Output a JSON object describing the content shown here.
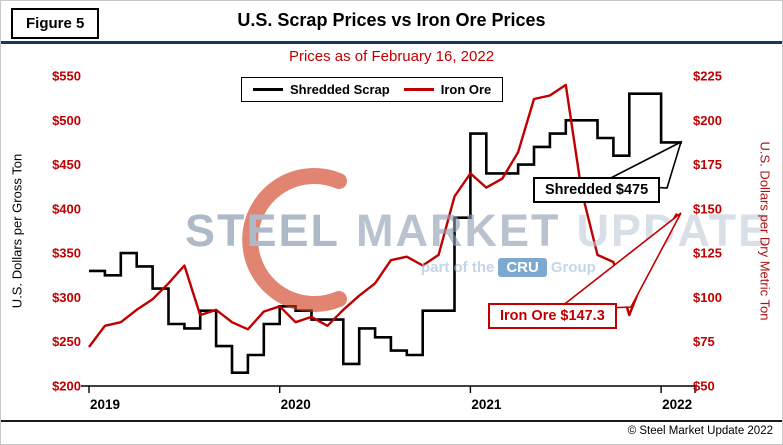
{
  "figure_label": "Figure 5",
  "title": "U.S. Scrap Prices vs Iron Ore Prices",
  "subtitle": "Prices as of February 16, 2022",
  "footer": {
    "copyright": "© Steel Market Update 2022"
  },
  "watermark": {
    "words": [
      "STEEL",
      "MARKET",
      "UPDATE"
    ],
    "tagline_pre": "part of the",
    "tagline_brand": "CRU",
    "tagline_post": "Group"
  },
  "annotations": {
    "shredded": {
      "label": "Shredded $475"
    },
    "iron_ore": {
      "label": "Iron Ore $147.3"
    }
  },
  "colors": {
    "scrap_line": "#000000",
    "iron_ore_line": "#c00000",
    "subtitle_red": "#c00000",
    "header_rule_navy": "#17375e",
    "cru_box_blue": "#2e75b6"
  },
  "chart_data": {
    "type": "line",
    "title": "U.S. Scrap Prices vs Iron Ore Prices",
    "subtitle": "Prices as of February 16, 2022",
    "grid": false,
    "legend_position": "top-center",
    "x_axis": {
      "tick_labels": [
        "2019",
        "2020",
        "2021",
        "2022"
      ]
    },
    "left_axis": {
      "label": "U.S. Dollars per Gross Ton",
      "ylim": [
        200,
        550
      ],
      "tick_step": 50,
      "tick_labels": [
        "$550",
        "$500",
        "$450",
        "$400",
        "$350",
        "$300",
        "$250",
        "$200"
      ]
    },
    "right_axis": {
      "label": "U.S. Dollars per Dry Metric Ton",
      "ylim": [
        50,
        225
      ],
      "tick_step": 25,
      "tick_labels": [
        "$225",
        "$200",
        "$175",
        "$150",
        "$125",
        "$100",
        "$75",
        "$50"
      ]
    },
    "months": [
      "2019-01",
      "2019-02",
      "2019-03",
      "2019-04",
      "2019-05",
      "2019-06",
      "2019-07",
      "2019-08",
      "2019-09",
      "2019-10",
      "2019-11",
      "2019-12",
      "2020-01",
      "2020-02",
      "2020-03",
      "2020-04",
      "2020-05",
      "2020-06",
      "2020-07",
      "2020-08",
      "2020-09",
      "2020-10",
      "2020-11",
      "2020-12",
      "2021-01",
      "2021-02",
      "2021-03",
      "2021-04",
      "2021-05",
      "2021-06",
      "2021-07",
      "2021-08",
      "2021-09",
      "2021-10",
      "2021-11",
      "2021-12",
      "2022-01",
      "2022-02"
    ],
    "series": [
      {
        "name": "Shredded Scrap",
        "axis": "left",
        "unit": "USD per gross ton",
        "color": "#000000",
        "line_style": "step",
        "latest": 475,
        "values": [
          330,
          325,
          350,
          335,
          310,
          270,
          265,
          285,
          245,
          215,
          235,
          270,
          290,
          285,
          275,
          275,
          225,
          265,
          255,
          240,
          235,
          285,
          285,
          390,
          485,
          440,
          440,
          450,
          470,
          485,
          500,
          500,
          480,
          460,
          530,
          530,
          475,
          475
        ]
      },
      {
        "name": "Iron Ore",
        "axis": "right",
        "unit": "USD per dry metric ton",
        "color": "#c00000",
        "line_style": "solid",
        "latest": 147.3,
        "values": [
          72,
          84,
          86,
          93,
          99,
          108,
          118,
          90,
          93,
          86,
          82,
          92,
          95,
          86,
          89,
          84,
          93,
          101,
          108,
          121,
          123,
          118,
          124,
          157,
          170,
          162,
          167,
          182,
          212,
          214,
          220,
          160,
          124,
          120,
          90,
          113,
          132,
          147.3
        ]
      }
    ]
  }
}
